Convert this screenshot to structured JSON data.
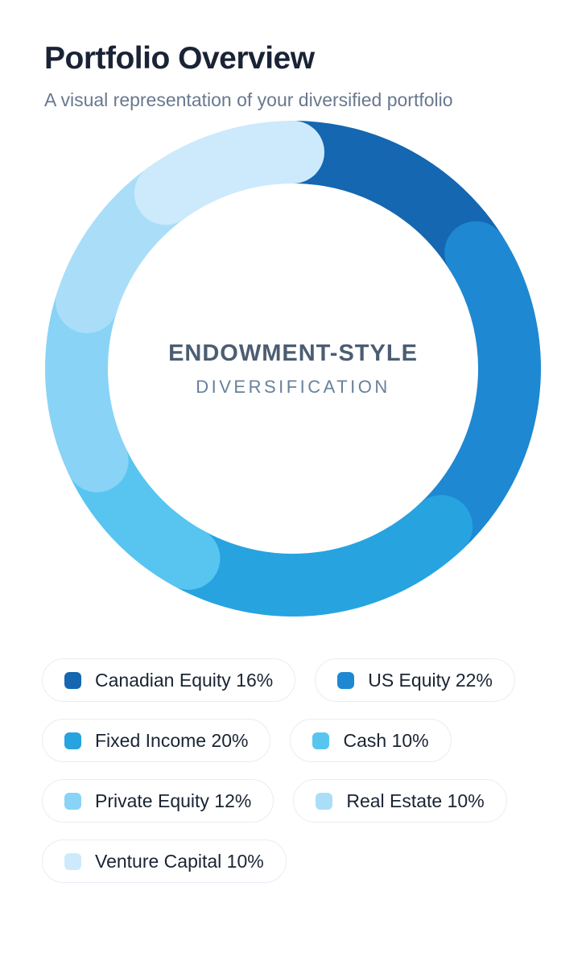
{
  "header": {
    "title": "Portfolio Overview",
    "subtitle": "A visual representation of your diversified portfolio"
  },
  "chart_data": {
    "type": "pie",
    "variant": "donut",
    "title": "Portfolio Overview",
    "center_title": "ENDOWMENT-STYLE",
    "center_subtitle": "DIVERSIFICATION",
    "start_angle_deg": 0,
    "direction": "clockwise",
    "rounded_segment_caps": true,
    "ring_thickness_ratio": 0.253,
    "legend_position": "bottom",
    "segments": [
      {
        "label": "Canadian Equity",
        "value_pct": 16,
        "color": "#1467b0",
        "display": "Canadian Equity 16%"
      },
      {
        "label": "US Equity",
        "value_pct": 22,
        "color": "#1e88d2",
        "display": "US Equity 22%"
      },
      {
        "label": "Fixed Income",
        "value_pct": 20,
        "color": "#27a3e0",
        "display": "Fixed Income 20%"
      },
      {
        "label": "Cash",
        "value_pct": 10,
        "color": "#58c5f1",
        "display": "Cash 10%"
      },
      {
        "label": "Private Equity",
        "value_pct": 12,
        "color": "#89d3f6",
        "display": "Private Equity 12%"
      },
      {
        "label": "Real Estate",
        "value_pct": 10,
        "color": "#aadef8",
        "display": "Real Estate 10%"
      },
      {
        "label": "Venture Capital",
        "value_pct": 10,
        "color": "#cdeafc",
        "display": "Venture Capital 10%"
      }
    ]
  },
  "colors": {
    "page_background": "#ffffff",
    "title_text": "#1a2336",
    "subtitle_text": "#68788e",
    "center_title_text": "#4c5d72",
    "center_subtitle_text": "#68809b",
    "legend_pill_border": "#e7edf5",
    "legend_pill_background": "#ffffff",
    "legend_label_text": "#1a2433"
  }
}
